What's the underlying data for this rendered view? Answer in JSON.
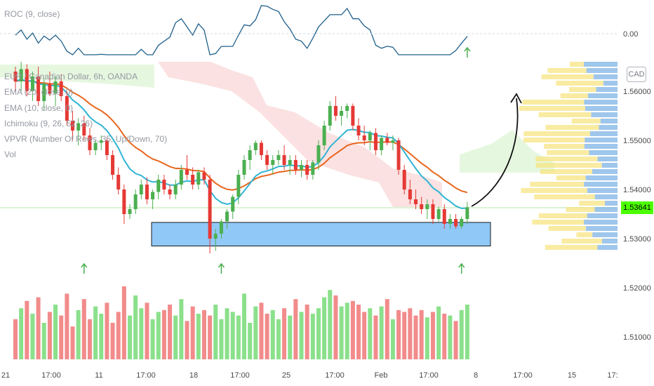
{
  "roc_legend": "ROC (9, close)",
  "legend_lines": [
    "EUR / Canadian Dollar, 6h, OANDA",
    "EMA (20, close, 0)",
    "EMA (10, close, 0)",
    "Ichimoku (9, 26, 52, 26)",
    "VPVR (Number Of Rows, 35, Up/Down, 70)",
    "Vol"
  ],
  "currency_badge": "CAD",
  "last_price": "1.53641",
  "colors": {
    "up": "#26a69a",
    "up_candle": "#4caf50",
    "down_candle": "#e53935",
    "ema20": "#e8661d",
    "ema10": "#30b4d4",
    "roc": "#1f5f8b",
    "zone": "#90c8f8",
    "arrow": "#4caf50"
  },
  "chart_data": {
    "type": "candlestick",
    "symbol": "EUR / Canadian Dollar, 6h, OANDA",
    "price_ticks": [
      "1.56000",
      "1.55000",
      "1.54000",
      "1.53000",
      "1.52000",
      "1.51000"
    ],
    "roc_tick": "0.00",
    "x_ticks": [
      "21",
      "17:00",
      "11",
      "17:00",
      "18",
      "17:00",
      "25",
      "17:00",
      "Feb",
      "17:00",
      "8",
      "17:00",
      "15",
      "17:"
    ],
    "candles": [
      [
        1.564,
        1.565,
        1.56,
        1.562
      ],
      [
        1.562,
        1.566,
        1.56,
        1.5645
      ],
      [
        1.5645,
        1.5655,
        1.559,
        1.56
      ],
      [
        1.56,
        1.564,
        1.558,
        1.563
      ],
      [
        1.563,
        1.565,
        1.557,
        1.558
      ],
      [
        1.558,
        1.5625,
        1.556,
        1.5615
      ],
      [
        1.5615,
        1.564,
        1.559,
        1.5595
      ],
      [
        1.5595,
        1.563,
        1.557,
        1.562
      ],
      [
        1.562,
        1.5635,
        1.558,
        1.559
      ],
      [
        1.559,
        1.56,
        1.553,
        1.554
      ],
      [
        1.554,
        1.556,
        1.55,
        1.552
      ],
      [
        1.552,
        1.5545,
        1.549,
        1.5535
      ],
      [
        1.5535,
        1.555,
        1.55,
        1.551
      ],
      [
        1.551,
        1.5525,
        1.547,
        1.548
      ],
      [
        1.548,
        1.55,
        1.547,
        1.5495
      ],
      [
        1.5495,
        1.551,
        1.548,
        1.55
      ],
      [
        1.55,
        1.5505,
        1.546,
        1.547
      ],
      [
        1.547,
        1.548,
        1.542,
        1.543
      ],
      [
        1.543,
        1.5445,
        1.539,
        1.54
      ],
      [
        1.54,
        1.541,
        1.533,
        1.535
      ],
      [
        1.535,
        1.537,
        1.534,
        1.536
      ],
      [
        1.536,
        1.54,
        1.535,
        1.539
      ],
      [
        1.539,
        1.542,
        1.538,
        1.541
      ],
      [
        1.541,
        1.5425,
        1.537,
        1.538
      ],
      [
        1.538,
        1.54,
        1.536,
        1.5395
      ],
      [
        1.5395,
        1.543,
        1.538,
        1.542
      ],
      [
        1.542,
        1.543,
        1.539,
        1.54
      ],
      [
        1.54,
        1.541,
        1.538,
        1.539
      ],
      [
        1.539,
        1.542,
        1.538,
        1.541
      ],
      [
        1.541,
        1.545,
        1.54,
        1.544
      ],
      [
        1.544,
        1.547,
        1.542,
        1.543
      ],
      [
        1.543,
        1.5445,
        1.54,
        1.541
      ],
      [
        1.541,
        1.544,
        1.54,
        1.5435
      ],
      [
        1.5435,
        1.5445,
        1.541,
        1.542
      ],
      [
        1.542,
        1.543,
        1.527,
        1.53
      ],
      [
        1.53,
        1.532,
        1.5275,
        1.531
      ],
      [
        1.531,
        1.534,
        1.53,
        1.5335
      ],
      [
        1.5335,
        1.536,
        1.532,
        1.5355
      ],
      [
        1.5355,
        1.539,
        1.534,
        1.5385
      ],
      [
        1.5385,
        1.544,
        1.537,
        1.543
      ],
      [
        1.543,
        1.547,
        1.542,
        1.546
      ],
      [
        1.546,
        1.549,
        1.544,
        1.548
      ],
      [
        1.548,
        1.55,
        1.547,
        1.5495
      ],
      [
        1.5495,
        1.55,
        1.546,
        1.547
      ],
      [
        1.547,
        1.548,
        1.544,
        1.545
      ],
      [
        1.545,
        1.547,
        1.543,
        1.546
      ],
      [
        1.546,
        1.548,
        1.545,
        1.547
      ],
      [
        1.547,
        1.549,
        1.544,
        1.545
      ],
      [
        1.545,
        1.547,
        1.543,
        1.546
      ],
      [
        1.546,
        1.547,
        1.543,
        1.544
      ],
      [
        1.544,
        1.546,
        1.5425,
        1.545
      ],
      [
        1.545,
        1.546,
        1.542,
        1.543
      ],
      [
        1.543,
        1.546,
        1.542,
        1.5455
      ],
      [
        1.5455,
        1.55,
        1.544,
        1.549
      ],
      [
        1.549,
        1.554,
        1.548,
        1.553
      ],
      [
        1.553,
        1.558,
        1.552,
        1.557
      ],
      [
        1.557,
        1.559,
        1.554,
        1.555
      ],
      [
        1.555,
        1.557,
        1.553,
        1.556
      ],
      [
        1.556,
        1.5575,
        1.5545,
        1.557
      ],
      [
        1.557,
        1.5575,
        1.552,
        1.553
      ],
      [
        1.553,
        1.5545,
        1.55,
        1.551
      ],
      [
        1.551,
        1.553,
        1.549,
        1.55
      ],
      [
        1.55,
        1.552,
        1.548,
        1.5515
      ],
      [
        1.5515,
        1.5525,
        1.547,
        1.548
      ],
      [
        1.548,
        1.551,
        1.547,
        1.5505
      ],
      [
        1.5505,
        1.5515,
        1.549,
        1.5495
      ],
      [
        1.5495,
        1.551,
        1.548,
        1.55
      ],
      [
        1.55,
        1.5505,
        1.543,
        1.544
      ],
      [
        1.544,
        1.545,
        1.539,
        1.54
      ],
      [
        1.54,
        1.542,
        1.537,
        1.538
      ],
      [
        1.538,
        1.54,
        1.536,
        1.537
      ],
      [
        1.537,
        1.5385,
        1.535,
        1.536
      ],
      [
        1.536,
        1.538,
        1.534,
        1.537
      ],
      [
        1.537,
        1.538,
        1.533,
        1.534
      ],
      [
        1.534,
        1.5365,
        1.5335,
        1.536
      ],
      [
        1.536,
        1.537,
        1.532,
        1.533
      ],
      [
        1.533,
        1.535,
        1.532,
        1.534
      ],
      [
        1.534,
        1.535,
        1.532,
        1.5325
      ],
      [
        1.5325,
        1.5345,
        1.532,
        1.534
      ],
      [
        1.534,
        1.5375,
        1.533,
        1.5364
      ]
    ],
    "volumes": [
      22,
      28,
      32,
      25,
      34,
      20,
      26,
      30,
      24,
      36,
      18,
      27,
      33,
      22,
      29,
      25,
      31,
      20,
      26,
      40,
      24,
      35,
      28,
      31,
      22,
      26,
      27,
      30,
      24,
      33,
      21,
      29,
      25,
      27,
      24,
      30,
      22,
      28,
      26,
      24,
      36,
      20,
      29,
      31,
      25,
      27,
      22,
      28,
      24,
      33,
      26,
      30,
      25,
      28,
      34,
      38,
      35,
      29,
      31,
      32,
      30,
      26,
      28,
      24,
      29,
      33,
      22,
      27,
      26,
      28,
      24,
      27,
      23,
      26,
      29,
      25,
      24,
      21,
      27,
      30
    ],
    "zone": {
      "from": 1.5285,
      "to": 1.5333
    },
    "arrows_at_candles": [
      12,
      36,
      78,
      79
    ],
    "ema_periods": [
      10,
      20
    ]
  }
}
